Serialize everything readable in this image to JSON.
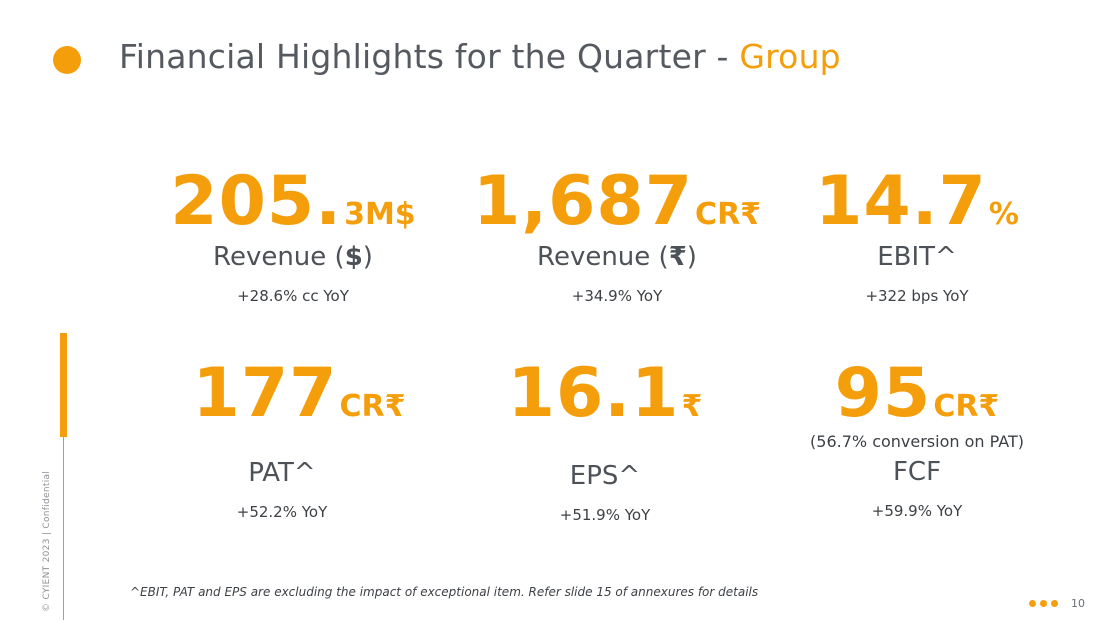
{
  "header": {
    "title_main": "Financial Highlights for the Quarter - ",
    "title_accent": "Group",
    "accent_color": "#f59e0b"
  },
  "metrics": [
    {
      "value": "205.",
      "unit": "3M$",
      "label_text": "Revenue (",
      "label_bold": "$",
      "label_end": ")",
      "sub": "+28.6% cc YoY"
    },
    {
      "value": "1,687",
      "unit": "CR₹",
      "label_text": "Revenue (",
      "label_bold": "₹",
      "label_end": ")",
      "sub": "+34.9% YoY"
    },
    {
      "value": "14.7",
      "unit": "%",
      "label": "EBIT^",
      "sub": "+322 bps YoY"
    },
    {
      "value": "177",
      "unit": "CR₹",
      "label": "PAT^",
      "sub": "+52.2% YoY"
    },
    {
      "value": "16.1",
      "unit": "₹",
      "label": "EPS^",
      "sub": "+51.9% YoY"
    },
    {
      "value": "95",
      "unit": "CR₹",
      "note": "(56.7% conversion on PAT)",
      "label": "FCF",
      "sub": "+59.9% YoY"
    }
  ],
  "footer": {
    "footnote": "^EBIT, PAT and EPS are excluding the impact of exceptional item. Refer slide 15 of annexures for details",
    "page_number": "10",
    "side_text": "© CYIENT 2023 | Confidential"
  }
}
